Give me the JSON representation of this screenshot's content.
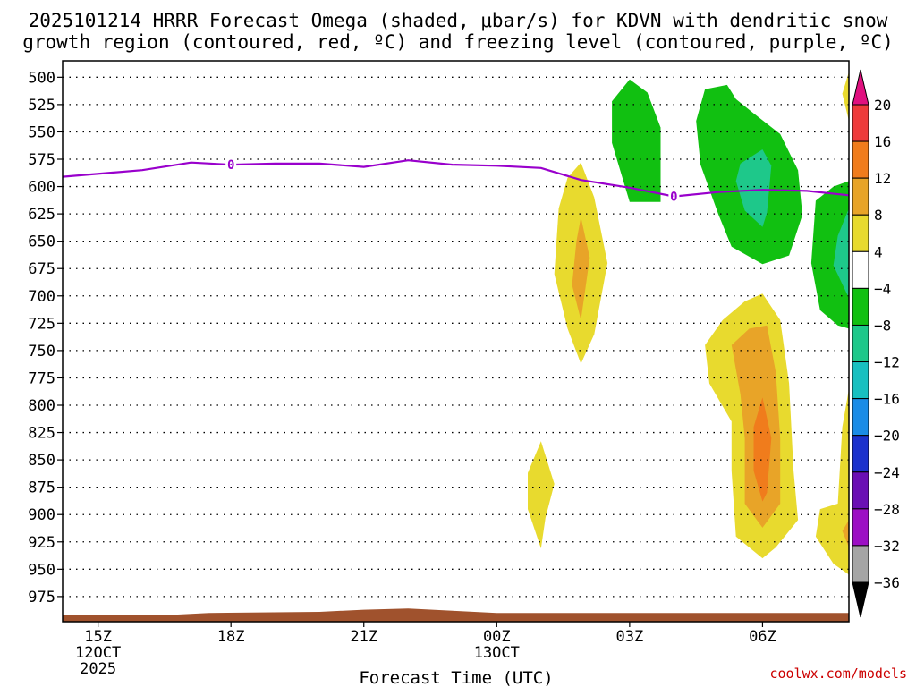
{
  "chart_data": {
    "type": "contour",
    "title_line1": "2025101214 HRRR Forecast Omega (shaded, μbar/s) for KDVN with dendritic snow",
    "title_line2": "growth region (contoured, red, ºC) and freezing level (contoured, purple, ºC)",
    "xlabel": "Forecast Time (UTC)",
    "credit": "coolwx.com/models",
    "x_ticks": [
      {
        "hour": 15,
        "label": "15Z",
        "sub1": "12OCT",
        "sub2": "2025"
      },
      {
        "hour": 18,
        "label": "18Z",
        "sub1": "",
        "sub2": ""
      },
      {
        "hour": 21,
        "label": "21Z",
        "sub1": "",
        "sub2": ""
      },
      {
        "hour": 24,
        "label": "00Z",
        "sub1": "13OCT",
        "sub2": ""
      },
      {
        "hour": 27,
        "label": "03Z",
        "sub1": "",
        "sub2": ""
      },
      {
        "hour": 30,
        "label": "06Z",
        "sub1": "",
        "sub2": ""
      }
    ],
    "x_range": [
      14.2,
      31.95
    ],
    "y_levels": [
      500,
      525,
      550,
      575,
      600,
      625,
      650,
      675,
      700,
      725,
      750,
      775,
      800,
      825,
      850,
      875,
      900,
      925,
      950,
      975
    ],
    "y_range_hpa": [
      485,
      998
    ],
    "colorbar": {
      "labels": [
        "20",
        "16",
        "12",
        "8",
        "4",
        "−4",
        "−8",
        "−12",
        "−16",
        "−20",
        "−24",
        "−28",
        "−32",
        "−36"
      ],
      "colors": [
        "#e0107f",
        "#ee3b3b",
        "#f07c1c",
        "#e8a428",
        "#e8da2e",
        "#ffffff",
        "#11c011",
        "#1ec88a",
        "#18c0c0",
        "#1a8ce6",
        "#1c32cc",
        "#6a0fb4",
        "#9c0fc4",
        "#a5a5a5",
        "#000000"
      ]
    },
    "freezing_level": {
      "label": "0",
      "color": "#9900cc",
      "points": [
        [
          14.2,
          591
        ],
        [
          16.0,
          585
        ],
        [
          17.1,
          578
        ],
        [
          18.0,
          580
        ],
        [
          19.0,
          579
        ],
        [
          20.0,
          579
        ],
        [
          21.0,
          582
        ],
        [
          22.0,
          576
        ],
        [
          23.0,
          580
        ],
        [
          24.0,
          581
        ],
        [
          25.0,
          583
        ],
        [
          25.9,
          594
        ],
        [
          27.0,
          601
        ],
        [
          28.0,
          609
        ],
        [
          29.0,
          605
        ],
        [
          30.0,
          603
        ],
        [
          31.0,
          604
        ],
        [
          31.95,
          608
        ]
      ],
      "label_points": [
        [
          18.0,
          580
        ],
        [
          28.0,
          609
        ]
      ]
    },
    "omega_regions": [
      {
        "name": "rising-003z",
        "value": -8,
        "color": "#11c011",
        "points": [
          [
            27.0,
            502
          ],
          [
            27.4,
            514
          ],
          [
            27.7,
            546
          ],
          [
            27.7,
            614
          ],
          [
            27.0,
            614
          ],
          [
            26.6,
            560
          ],
          [
            26.6,
            522
          ]
        ]
      },
      {
        "name": "rising-05z-06z",
        "value": -8,
        "color": "#11c011",
        "points": [
          [
            28.7,
            511
          ],
          [
            29.2,
            507
          ],
          [
            29.4,
            520
          ],
          [
            29.8,
            533
          ],
          [
            30.4,
            552
          ],
          [
            30.8,
            585
          ],
          [
            30.9,
            626
          ],
          [
            30.6,
            663
          ],
          [
            30.0,
            671
          ],
          [
            29.3,
            655
          ],
          [
            29.0,
            625
          ],
          [
            28.6,
            580
          ],
          [
            28.5,
            540
          ]
        ]
      },
      {
        "name": "rising-06z-core",
        "value": -12,
        "color": "#1ec88a",
        "points": [
          [
            29.5,
            579
          ],
          [
            30.0,
            566
          ],
          [
            30.2,
            581
          ],
          [
            30.1,
            624
          ],
          [
            30.0,
            637
          ],
          [
            29.6,
            622
          ],
          [
            29.4,
            595
          ]
        ]
      },
      {
        "name": "rising-08z-edge",
        "value": -8,
        "color": "#11c011",
        "points": [
          [
            31.95,
            595
          ],
          [
            31.6,
            600
          ],
          [
            31.2,
            613
          ],
          [
            31.1,
            670
          ],
          [
            31.3,
            713
          ],
          [
            31.7,
            727
          ],
          [
            31.95,
            730
          ]
        ]
      },
      {
        "name": "rising-08z-core",
        "value": -12,
        "color": "#1ec88a",
        "points": [
          [
            31.95,
            620
          ],
          [
            31.7,
            645
          ],
          [
            31.6,
            672
          ],
          [
            31.95,
            702
          ]
        ]
      },
      {
        "name": "sinking-02z",
        "value": 4,
        "color": "#e8da2e",
        "points": [
          [
            25.9,
            578
          ],
          [
            26.2,
            610
          ],
          [
            26.5,
            670
          ],
          [
            26.2,
            735
          ],
          [
            25.9,
            762
          ],
          [
            25.6,
            730
          ],
          [
            25.3,
            680
          ],
          [
            25.4,
            620
          ],
          [
            25.6,
            592
          ]
        ]
      },
      {
        "name": "sinking-02z-core",
        "value": 8,
        "color": "#e8a428",
        "points": [
          [
            25.9,
            628
          ],
          [
            26.1,
            665
          ],
          [
            25.9,
            722
          ],
          [
            25.7,
            690
          ],
          [
            25.8,
            650
          ]
        ]
      },
      {
        "name": "sinking-01z-low",
        "value": 4,
        "color": "#e8da2e",
        "points": [
          [
            25.0,
            833
          ],
          [
            25.3,
            872
          ],
          [
            25.1,
            903
          ],
          [
            25.0,
            931
          ],
          [
            24.7,
            895
          ],
          [
            24.7,
            862
          ]
        ]
      },
      {
        "name": "sinking-06z",
        "value": 4,
        "color": "#e8da2e",
        "points": [
          [
            30.0,
            698
          ],
          [
            30.4,
            722
          ],
          [
            30.6,
            780
          ],
          [
            30.7,
            860
          ],
          [
            30.8,
            905
          ],
          [
            30.3,
            930
          ],
          [
            30.0,
            940
          ],
          [
            29.4,
            920
          ],
          [
            29.3,
            860
          ],
          [
            29.3,
            815
          ],
          [
            28.8,
            780
          ],
          [
            28.7,
            745
          ],
          [
            29.1,
            722
          ],
          [
            29.6,
            705
          ]
        ]
      },
      {
        "name": "sinking-06z-mid",
        "value": 8,
        "color": "#e8a428",
        "points": [
          [
            30.1,
            727
          ],
          [
            30.3,
            770
          ],
          [
            30.4,
            830
          ],
          [
            30.4,
            890
          ],
          [
            30.0,
            912
          ],
          [
            29.6,
            890
          ],
          [
            29.6,
            830
          ],
          [
            29.5,
            790
          ],
          [
            29.3,
            745
          ],
          [
            29.7,
            730
          ]
        ]
      },
      {
        "name": "sinking-06z-core",
        "value": 12,
        "color": "#f07c1c",
        "points": [
          [
            30.0,
            793
          ],
          [
            30.2,
            830
          ],
          [
            30.1,
            880
          ],
          [
            30.0,
            888
          ],
          [
            29.8,
            860
          ],
          [
            29.8,
            820
          ]
        ]
      },
      {
        "name": "sinking-08z-low",
        "value": 4,
        "color": "#e8da2e",
        "points": [
          [
            31.95,
            785
          ],
          [
            31.8,
            820
          ],
          [
            31.7,
            890
          ],
          [
            31.3,
            895
          ],
          [
            31.2,
            920
          ],
          [
            31.6,
            945
          ],
          [
            31.95,
            955
          ]
        ]
      },
      {
        "name": "sinking-08z-core",
        "value": 8,
        "color": "#e8a428",
        "points": [
          [
            31.95,
            905
          ],
          [
            31.8,
            915
          ],
          [
            31.95,
            930
          ]
        ]
      },
      {
        "name": "sinking-08z-top",
        "value": 4,
        "color": "#e8da2e",
        "points": [
          [
            31.95,
            495
          ],
          [
            31.8,
            515
          ],
          [
            31.95,
            540
          ]
        ]
      }
    ],
    "terrain": {
      "color": "#a0522d",
      "points": [
        [
          14.2,
          992
        ],
        [
          16.5,
          992
        ],
        [
          17.5,
          990
        ],
        [
          20.0,
          989
        ],
        [
          21.0,
          987
        ],
        [
          22.0,
          986
        ],
        [
          23.0,
          988
        ],
        [
          24.0,
          990
        ],
        [
          27.0,
          990
        ],
        [
          31.95,
          990
        ]
      ]
    }
  }
}
